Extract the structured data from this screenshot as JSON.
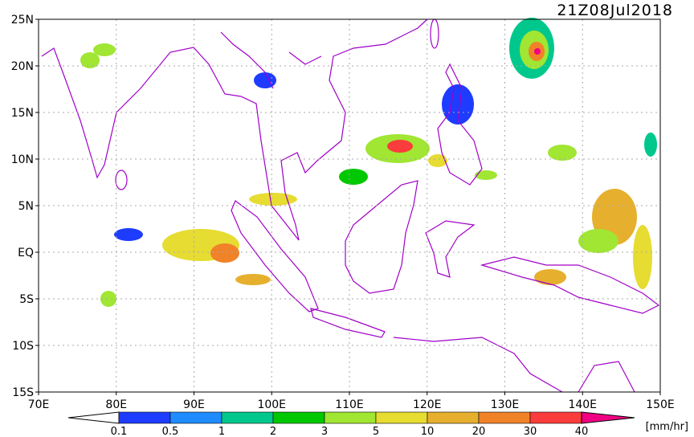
{
  "map": {
    "title": "21Z08Jul2018",
    "lat_labels": [
      "25N",
      "20N",
      "15N",
      "10N",
      "5N",
      "EQ",
      "5S",
      "10S",
      "15S"
    ],
    "lon_labels": [
      "70E",
      "80E",
      "90E",
      "100E",
      "110E",
      "120E",
      "130E",
      "140E",
      "150E"
    ],
    "colorbar": {
      "labels": [
        "0.1",
        "0.5",
        "1",
        "2",
        "3",
        "5",
        "10",
        "20",
        "30",
        "40"
      ],
      "colors": [
        "#1e3cff",
        "#1e8cff",
        "#00c88c",
        "#00c800",
        "#a0e632",
        "#e6dc32",
        "#e6af2d",
        "#f08228",
        "#fa3c3c",
        "#f00082"
      ],
      "unit": "[mm/hr]"
    }
  }
}
